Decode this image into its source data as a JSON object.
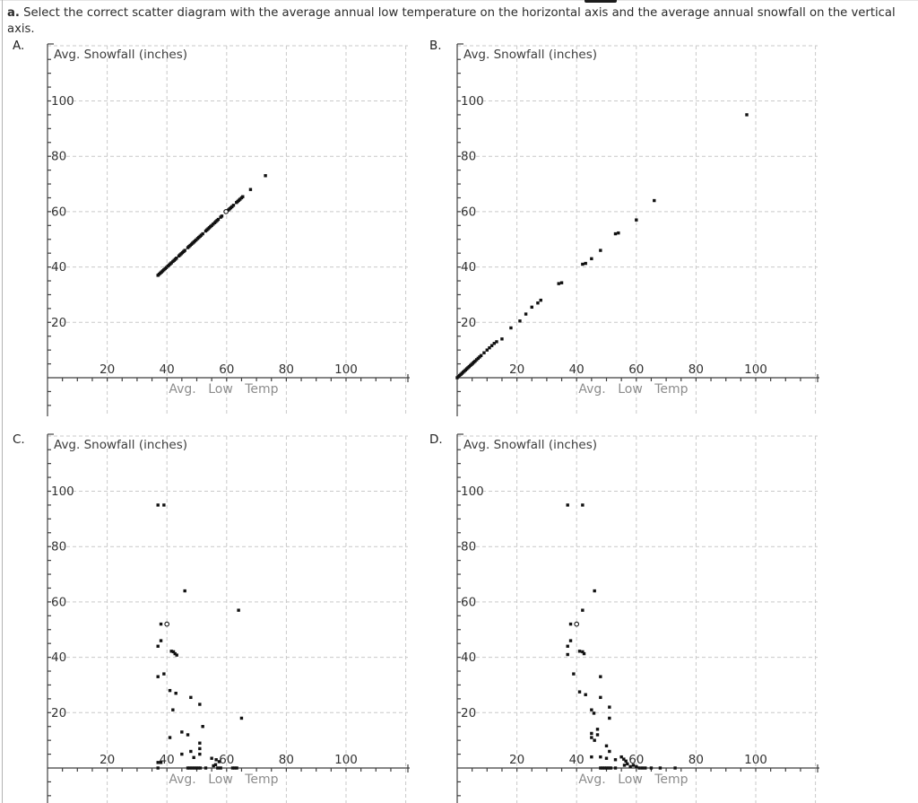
{
  "page": {
    "question_prefix": "a.",
    "question_text": " Select the correct scatter diagram with the average annual low temperature on the horizontal axis and the average annual snowfall on the vertical axis."
  },
  "colors": {
    "point": "#111111",
    "grid": "#c9c9c9",
    "axis": "#3f3f3f",
    "tick_label": "#333333",
    "x_axis_title": "#8c8c8c",
    "y_axis_title": "#3d3d3d"
  },
  "axes": {
    "x_ticks": [
      20,
      40,
      60,
      80,
      100
    ],
    "y_ticks": [
      20,
      40,
      60,
      80,
      100
    ],
    "minor_tick_step": 5,
    "grid_step": 20,
    "x_max": 120,
    "y_max": 120
  },
  "chart_data": [
    {
      "label": "A.",
      "type": "scatter",
      "xlabel": "Avg. Low Temp",
      "ylabel": "Avg. Snowfall (inches)",
      "xlim": [
        0,
        120
      ],
      "ylim": [
        0,
        120
      ],
      "description": "tight diagonal y=x from (37,37) to (73,73)",
      "points": [
        [
          37,
          37
        ],
        [
          37.4,
          37.4
        ],
        [
          37.8,
          37.8
        ],
        [
          38.2,
          38.2
        ],
        [
          38.6,
          38.6
        ],
        [
          39,
          39
        ],
        [
          39.4,
          39.4
        ],
        [
          39.8,
          39.8
        ],
        [
          40.3,
          40.3
        ],
        [
          40.7,
          40.7
        ],
        [
          41.1,
          41.1
        ],
        [
          41.5,
          41.5
        ],
        [
          42,
          42
        ],
        [
          42.4,
          42.4
        ],
        [
          42.8,
          42.8
        ],
        [
          43.2,
          43.2
        ],
        [
          44,
          44
        ],
        [
          44.4,
          44.4
        ],
        [
          44.8,
          44.8
        ],
        [
          45.2,
          45.2
        ],
        [
          45.6,
          45.6
        ],
        [
          46,
          46
        ],
        [
          47,
          47
        ],
        [
          47.4,
          47.4
        ],
        [
          47.8,
          47.8
        ],
        [
          48.2,
          48.2
        ],
        [
          48.6,
          48.6
        ],
        [
          49,
          49
        ],
        [
          49.4,
          49.4
        ],
        [
          49.8,
          49.8
        ],
        [
          50.3,
          50.3
        ],
        [
          50.7,
          50.7
        ],
        [
          51.1,
          51.1
        ],
        [
          51.5,
          51.5
        ],
        [
          52,
          52
        ],
        [
          53,
          53
        ],
        [
          53.4,
          53.4
        ],
        [
          53.8,
          53.8
        ],
        [
          54.2,
          54.2
        ],
        [
          54.6,
          54.6
        ],
        [
          55,
          55
        ],
        [
          55.5,
          55.5
        ],
        [
          56,
          56
        ],
        [
          56.4,
          56.4
        ],
        [
          56.8,
          56.8
        ],
        [
          57.2,
          57.2
        ],
        [
          58,
          58
        ],
        [
          58.4,
          58.4
        ],
        [
          60.6,
          60.6
        ],
        [
          61,
          61
        ],
        [
          61.4,
          61.4
        ],
        [
          61.8,
          61.8
        ],
        [
          62.3,
          62.3
        ],
        [
          63.3,
          63.3
        ],
        [
          63.7,
          63.7
        ],
        [
          64.1,
          64.1
        ],
        [
          64.5,
          64.5
        ],
        [
          65,
          65
        ],
        [
          65.4,
          65.4
        ],
        [
          68,
          68
        ],
        [
          73,
          73
        ]
      ],
      "open_points": [
        [
          59.8,
          60
        ]
      ]
    },
    {
      "label": "B.",
      "type": "scatter",
      "xlabel": "Avg. Low Temp",
      "ylabel": "Avg. Snowfall (inches)",
      "xlim": [
        0,
        120
      ],
      "ylim": [
        0,
        120
      ],
      "description": "diagonal from origin, dense near (0,0), outliers at (66,64) and (97,95)",
      "points": [
        [
          0,
          0
        ],
        [
          0.4,
          0.4
        ],
        [
          0.8,
          0.8
        ],
        [
          1.2,
          1.2
        ],
        [
          1.6,
          1.6
        ],
        [
          2,
          2
        ],
        [
          2.4,
          2.4
        ],
        [
          2.8,
          2.8
        ],
        [
          3.2,
          3.2
        ],
        [
          3.6,
          3.6
        ],
        [
          4,
          4
        ],
        [
          4.4,
          4.4
        ],
        [
          4.8,
          4.8
        ],
        [
          5.2,
          5.2
        ],
        [
          5.6,
          5.6
        ],
        [
          6,
          6
        ],
        [
          6.5,
          6.5
        ],
        [
          7,
          7
        ],
        [
          7.5,
          7.5
        ],
        [
          8,
          8
        ],
        [
          9,
          9
        ],
        [
          10,
          10
        ],
        [
          10.8,
          10.8
        ],
        [
          11.6,
          11.6
        ],
        [
          12.4,
          12.4
        ],
        [
          13.2,
          13
        ],
        [
          15,
          14
        ],
        [
          18,
          18
        ],
        [
          21,
          20.5
        ],
        [
          23,
          23
        ],
        [
          25,
          25.5
        ],
        [
          27,
          27
        ],
        [
          28,
          28
        ],
        [
          34,
          34
        ],
        [
          35,
          34.3
        ],
        [
          42,
          41
        ],
        [
          43,
          41.3
        ],
        [
          45,
          43
        ],
        [
          48,
          46
        ],
        [
          53,
          52
        ],
        [
          54,
          52.3
        ],
        [
          60,
          57
        ],
        [
          66,
          64
        ],
        [
          97,
          95
        ]
      ],
      "open_points": []
    },
    {
      "label": "C.",
      "type": "scatter",
      "xlabel": "Avg. Low Temp",
      "ylabel": "Avg. Snowfall (inches)",
      "xlim": [
        0,
        120
      ],
      "ylim": [
        0,
        120
      ],
      "description": "vertical cluster x 37-52 with outliers (64,57) and (65,18)",
      "points": [
        [
          37,
          95
        ],
        [
          39,
          95
        ],
        [
          46,
          64
        ],
        [
          64,
          57
        ],
        [
          38,
          52
        ],
        [
          38,
          46
        ],
        [
          37,
          44
        ],
        [
          41.5,
          42.2
        ],
        [
          42.2,
          42
        ],
        [
          42.7,
          41.3
        ],
        [
          43.3,
          40.8
        ],
        [
          39,
          34
        ],
        [
          37,
          33
        ],
        [
          41,
          28
        ],
        [
          43,
          27
        ],
        [
          48,
          25.5
        ],
        [
          51,
          23
        ],
        [
          42,
          21
        ],
        [
          65,
          18
        ],
        [
          52,
          15
        ],
        [
          45,
          13
        ],
        [
          47,
          12
        ],
        [
          41,
          11
        ],
        [
          51,
          9
        ],
        [
          51,
          7
        ],
        [
          48,
          6
        ],
        [
          45,
          5
        ],
        [
          51,
          5
        ],
        [
          49,
          3.8
        ],
        [
          55,
          3.5
        ],
        [
          56.5,
          3
        ],
        [
          57.5,
          2.3
        ],
        [
          37,
          2
        ],
        [
          38,
          2
        ],
        [
          37,
          0
        ],
        [
          47,
          0
        ],
        [
          47.7,
          0
        ],
        [
          48.4,
          0
        ],
        [
          49.1,
          0
        ],
        [
          49.8,
          0
        ],
        [
          50.5,
          0
        ],
        [
          51.2,
          0
        ],
        [
          53,
          0
        ],
        [
          55.6,
          0.8
        ],
        [
          56.3,
          1.2
        ],
        [
          57,
          0
        ],
        [
          58,
          0
        ],
        [
          62,
          0
        ],
        [
          62.7,
          0
        ],
        [
          63.4,
          0
        ]
      ],
      "open_points": [
        [
          40,
          52
        ]
      ]
    },
    {
      "label": "D.",
      "type": "scatter",
      "xlabel": "Avg. Low Temp",
      "ylabel": "Avg. Snowfall (inches)",
      "xlim": [
        0,
        120
      ],
      "ylim": [
        0,
        120
      ],
      "description": "vertical cluster x 37-53, bottom row extends to x=73",
      "points": [
        [
          37,
          95
        ],
        [
          42,
          95
        ],
        [
          46,
          64
        ],
        [
          42,
          57
        ],
        [
          38,
          52
        ],
        [
          38,
          46
        ],
        [
          37,
          44
        ],
        [
          37,
          41
        ],
        [
          41,
          42.2
        ],
        [
          42,
          42
        ],
        [
          42.5,
          41.3
        ],
        [
          39,
          34
        ],
        [
          48,
          33
        ],
        [
          41,
          27.5
        ],
        [
          43,
          26.5
        ],
        [
          48,
          25.5
        ],
        [
          51,
          22
        ],
        [
          45,
          21
        ],
        [
          45.8,
          19.8
        ],
        [
          51,
          18
        ],
        [
          47,
          14
        ],
        [
          45,
          12.5
        ],
        [
          47,
          12
        ],
        [
          45,
          11
        ],
        [
          46,
          10
        ],
        [
          50,
          8
        ],
        [
          51,
          6
        ],
        [
          45,
          4
        ],
        [
          48,
          4
        ],
        [
          50,
          3.5
        ],
        [
          53,
          3
        ],
        [
          55,
          4
        ],
        [
          55.8,
          3.2
        ],
        [
          56.5,
          2.5
        ],
        [
          48,
          0
        ],
        [
          48.7,
          0
        ],
        [
          49.4,
          0
        ],
        [
          50.1,
          0
        ],
        [
          50.8,
          0
        ],
        [
          51.5,
          0
        ],
        [
          53,
          0
        ],
        [
          56,
          1
        ],
        [
          57,
          1.5
        ],
        [
          58,
          0.5
        ],
        [
          59,
          1
        ],
        [
          60,
          0.5
        ],
        [
          61,
          0
        ],
        [
          62,
          0
        ],
        [
          63,
          0
        ],
        [
          65,
          0
        ],
        [
          68,
          0
        ],
        [
          73,
          0
        ]
      ],
      "open_points": [
        [
          40,
          52
        ]
      ]
    }
  ]
}
